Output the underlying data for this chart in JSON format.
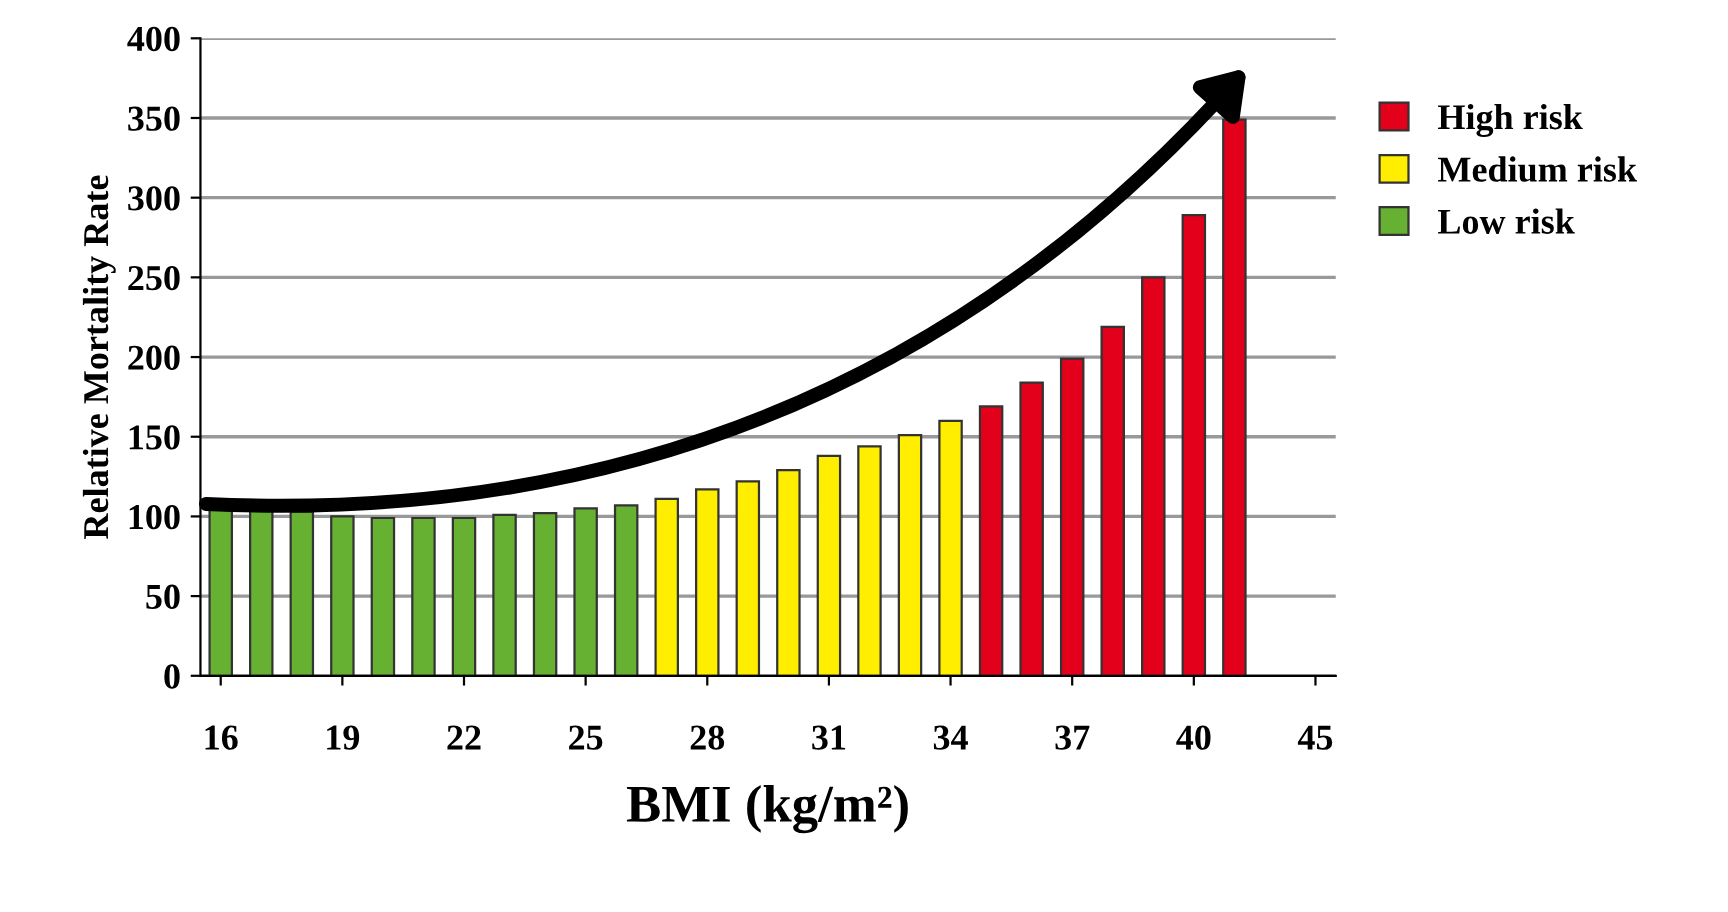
{
  "chart_data": {
    "type": "bar",
    "xlabel": "BMI (kg/m²)",
    "ylabel": "Relative Mortality Rate",
    "categories": [
      "16",
      null,
      null,
      "19",
      null,
      null,
      "22",
      null,
      null,
      "25",
      null,
      null,
      "28",
      null,
      null,
      "31",
      null,
      null,
      "34",
      null,
      null,
      "37",
      null,
      null,
      "40",
      null,
      null,
      "45"
    ],
    "series": [
      {
        "name": "High risk",
        "color": "#e3001b",
        "values": [
          null,
          null,
          null,
          null,
          null,
          null,
          null,
          null,
          null,
          null,
          null,
          null,
          null,
          null,
          null,
          null,
          null,
          null,
          null,
          169,
          184,
          199,
          219,
          250,
          289,
          349,
          null,
          null
        ]
      },
      {
        "name": "Medium risk",
        "color": "#ffee00",
        "values": [
          null,
          null,
          null,
          null,
          null,
          null,
          null,
          null,
          null,
          null,
          null,
          111,
          117,
          122,
          129,
          138,
          144,
          151,
          160,
          null,
          null,
          null,
          null,
          null,
          null,
          null,
          null,
          null
        ]
      },
      {
        "name": "Low risk",
        "color": "#66b032",
        "values": [
          105,
          105,
          103,
          100,
          99,
          99,
          99,
          101,
          102,
          105,
          107,
          null,
          null,
          null,
          null,
          null,
          null,
          null,
          null,
          null,
          null,
          null,
          null,
          null,
          null,
          null,
          null,
          null
        ]
      }
    ],
    "ylim": [
      0,
      400
    ],
    "yticks": [
      0,
      50,
      100,
      150,
      200,
      250,
      300,
      350,
      400
    ],
    "grid": "y",
    "legend": "right"
  }
}
